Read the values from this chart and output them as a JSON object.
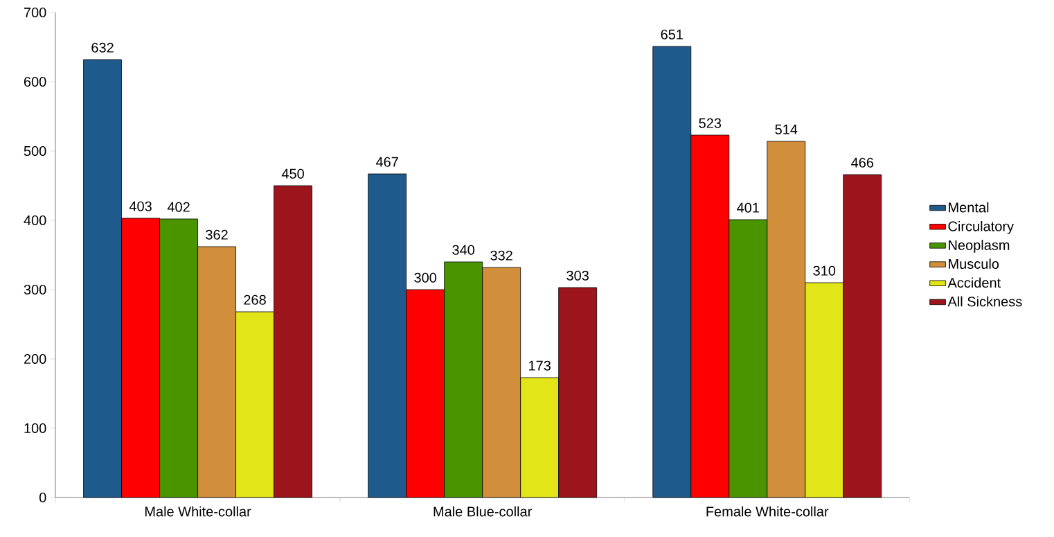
{
  "chart_data": {
    "type": "bar",
    "categories": [
      "Male White-collar",
      "Male Blue-collar",
      "Female White-collar"
    ],
    "series": [
      {
        "name": "Mental",
        "color": "#1f5a8c",
        "values": [
          632,
          467,
          651
        ]
      },
      {
        "name": "Circulatory",
        "color": "#ff0000",
        "values": [
          403,
          300,
          523
        ]
      },
      {
        "name": "Neoplasm",
        "color": "#4a9400",
        "values": [
          402,
          340,
          401
        ]
      },
      {
        "name": "Musculo",
        "color": "#d18f3c",
        "values": [
          362,
          332,
          514
        ]
      },
      {
        "name": "Accident",
        "color": "#e2e518",
        "values": [
          268,
          173,
          310
        ]
      },
      {
        "name": "All Sickness",
        "color": "#9c141c",
        "values": [
          450,
          303,
          466
        ]
      }
    ],
    "ylim": [
      0,
      700
    ],
    "yticks": [
      0,
      100,
      200,
      300,
      400,
      500,
      600,
      700
    ],
    "data_labels": true,
    "legend": "right",
    "grid": false
  }
}
